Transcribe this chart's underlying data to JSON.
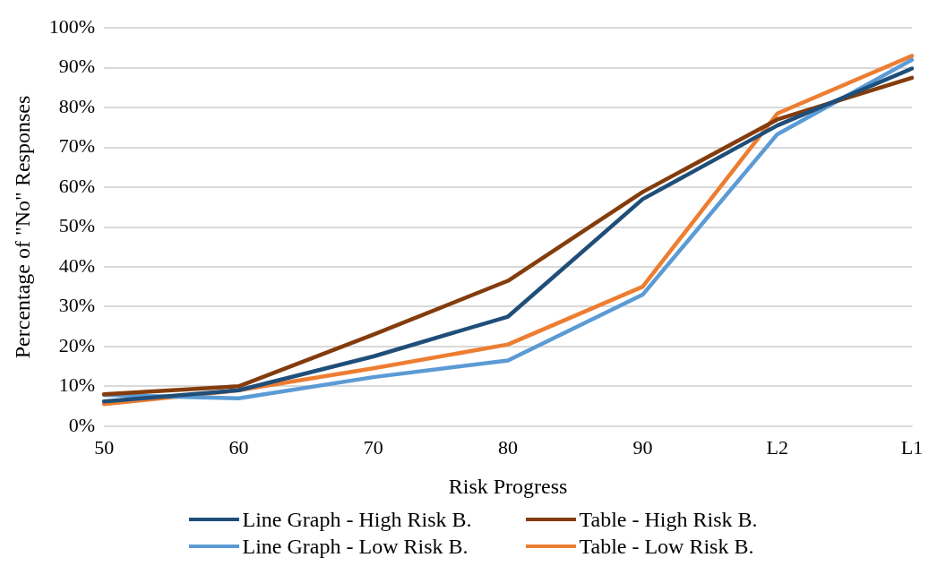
{
  "chart_data": {
    "type": "line",
    "categories": [
      "50",
      "60",
      "70",
      "80",
      "90",
      "L2",
      "L1"
    ],
    "xlabel": "Risk Progress",
    "ylabel": "Percentage of \"No\" Responses",
    "ylim": [
      0,
      100
    ],
    "yticks": [
      {
        "value": 0,
        "label": "0%"
      },
      {
        "value": 10,
        "label": "10%"
      },
      {
        "value": 20,
        "label": "20%"
      },
      {
        "value": 30,
        "label": "30%"
      },
      {
        "value": 40,
        "label": "40%"
      },
      {
        "value": 50,
        "label": "50%"
      },
      {
        "value": 60,
        "label": "60%"
      },
      {
        "value": 70,
        "label": "70%"
      },
      {
        "value": 80,
        "label": "80%"
      },
      {
        "value": 90,
        "label": "90%"
      },
      {
        "value": 100,
        "label": "100%"
      }
    ],
    "grid": "y",
    "legend": "bottom",
    "marker": "none",
    "line_style": "solid",
    "series": [
      {
        "name": "Line Graph - High Risk B.",
        "color": "#1f4e79",
        "values": [
          6.2,
          9,
          17.5,
          27.5,
          57,
          75.5,
          89.8
        ]
      },
      {
        "name": "Table - High Risk B.",
        "color": "#843c0c",
        "values": [
          8,
          10,
          23,
          36.5,
          58.8,
          77,
          87.5
        ]
      },
      {
        "name": "Line Graph - Low Risk B.",
        "color": "#5b9bd5",
        "values": [
          7.8,
          7,
          12.3,
          16.5,
          33,
          73.3,
          92
        ]
      },
      {
        "name": "Table - Low Risk B.",
        "color": "#ed7d31",
        "values": [
          5.5,
          9,
          14.5,
          20.5,
          35,
          78.5,
          93
        ]
      }
    ]
  }
}
